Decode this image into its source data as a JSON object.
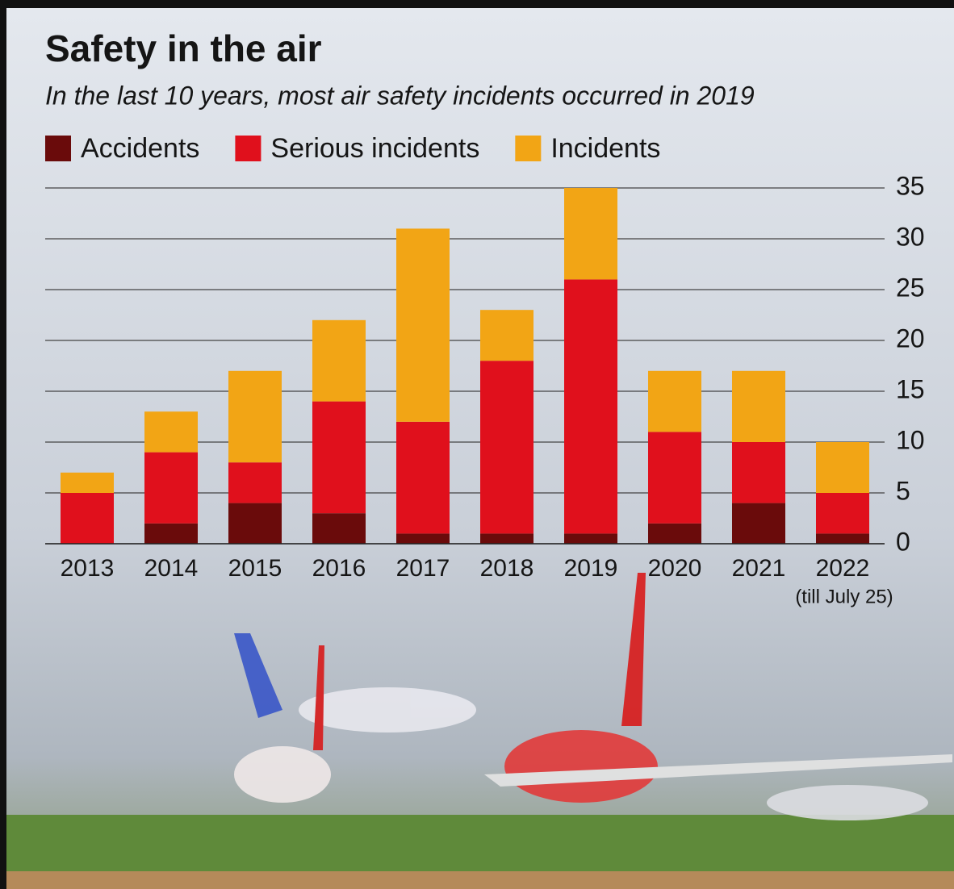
{
  "chart_data": {
    "type": "stacked_bar",
    "title": "Safety in the air",
    "subtitle": "In the last 10 years, most air safety incidents occurred in 2019",
    "categories": [
      "2013",
      "2014",
      "2015",
      "2016",
      "2017",
      "2018",
      "2019",
      "2020",
      "2021",
      "2022"
    ],
    "annotation": "(till July 25)",
    "series": [
      {
        "name": "Accidents",
        "color": "#6a0b0b",
        "values": [
          0,
          2,
          4,
          3,
          1,
          1,
          1,
          2,
          4,
          1
        ]
      },
      {
        "name": "Serious incidents",
        "color": "#e0101c",
        "values": [
          5,
          7,
          4,
          11,
          11,
          17,
          25,
          9,
          6,
          4
        ]
      },
      {
        "name": "Incidents",
        "color": "#f2a515",
        "values": [
          2,
          4,
          9,
          8,
          19,
          5,
          9,
          6,
          7,
          5
        ]
      }
    ],
    "ylim": [
      0,
      35
    ],
    "yticks": [
      0,
      5,
      10,
      15,
      20,
      25,
      30,
      35
    ],
    "grid": true,
    "legend": "top-left"
  }
}
